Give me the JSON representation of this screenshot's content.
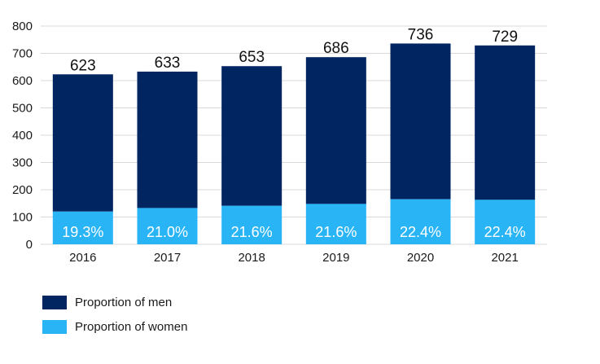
{
  "chart_data": {
    "type": "bar",
    "stacked": true,
    "categories": [
      "2016",
      "2017",
      "2018",
      "2019",
      "2020",
      "2021"
    ],
    "totals": [
      623,
      633,
      653,
      686,
      736,
      729
    ],
    "women_share_labels": [
      "19.3%",
      "21.0%",
      "21.6%",
      "21.6%",
      "22.4%",
      "22.4%"
    ],
    "series": [
      {
        "name": "Proportion of women",
        "values": [
          120,
          133,
          141,
          148,
          165,
          163
        ],
        "color": "#29b4f6"
      },
      {
        "name": "Proportion of men",
        "values": [
          503,
          500,
          512,
          538,
          571,
          566
        ],
        "color": "#002561"
      }
    ],
    "ylim": [
      0,
      800
    ],
    "yticks": [
      0,
      100,
      200,
      300,
      400,
      500,
      600,
      700,
      800
    ],
    "grid": true,
    "legend_position": "bottom-left",
    "title": "",
    "xlabel": "",
    "ylabel": ""
  }
}
